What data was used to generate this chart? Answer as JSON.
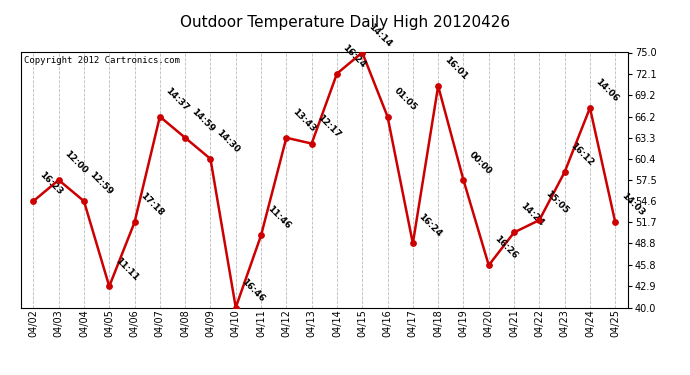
{
  "title": "Outdoor Temperature Daily High 20120426",
  "copyright": "Copyright 2012 Cartronics.com",
  "dates": [
    "04/02",
    "04/03",
    "04/04",
    "04/05",
    "04/06",
    "04/07",
    "04/08",
    "04/09",
    "04/10",
    "04/11",
    "04/12",
    "04/13",
    "04/14",
    "04/15",
    "04/16",
    "04/17",
    "04/18",
    "04/19",
    "04/20",
    "04/21",
    "04/22",
    "04/23",
    "04/24",
    "04/25"
  ],
  "temps": [
    54.6,
    57.5,
    54.6,
    42.9,
    51.7,
    66.2,
    63.3,
    60.4,
    40.0,
    49.9,
    63.3,
    62.5,
    72.1,
    75.0,
    66.2,
    48.8,
    70.4,
    57.5,
    45.8,
    50.3,
    52.0,
    58.6,
    67.4,
    51.7
  ],
  "times": [
    "16:23",
    "12:00",
    "12:59",
    "11:11",
    "17:18",
    "14:37",
    "14:59",
    "14:30",
    "16:46",
    "11:46",
    "13:43",
    "12:17",
    "16:24",
    "14:14",
    "01:05",
    "16:24",
    "16:01",
    "00:00",
    "16:26",
    "14:24",
    "15:05",
    "16:12",
    "14:06",
    "14:03"
  ],
  "ylim": [
    40.0,
    75.0
  ],
  "yticks": [
    40.0,
    42.9,
    45.8,
    48.8,
    51.7,
    54.6,
    57.5,
    60.4,
    63.3,
    66.2,
    69.2,
    72.1,
    75.0
  ],
  "line_color": "#cc0000",
  "marker_color": "#cc0000",
  "grid_color": "#bbbbbb",
  "bg_color": "#ffffff",
  "title_fontsize": 11,
  "annot_fontsize": 6.5,
  "tick_fontsize": 7,
  "copyright_fontsize": 6.5
}
